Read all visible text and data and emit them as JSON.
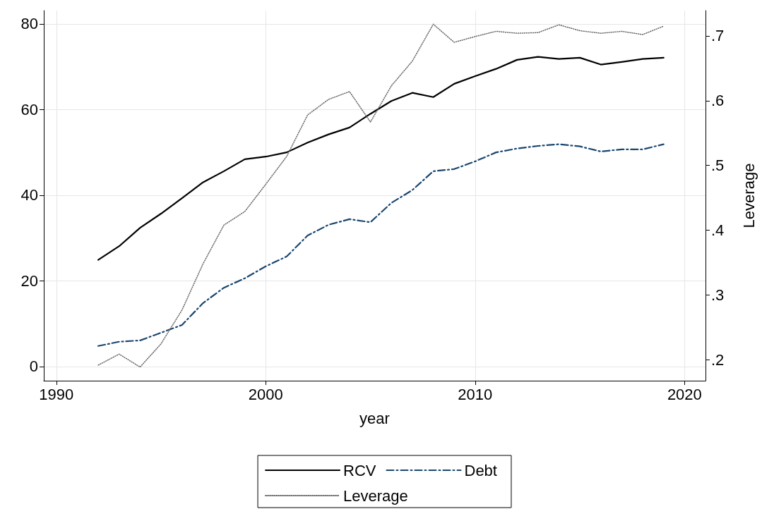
{
  "chart_data": {
    "type": "line",
    "xlabel": "year",
    "y2label": "Leverage",
    "x": [
      1992,
      1993,
      1994,
      1995,
      1996,
      1997,
      1998,
      1999,
      2000,
      2001,
      2002,
      2003,
      2004,
      2005,
      2006,
      2007,
      2008,
      2009,
      2010,
      2011,
      2012,
      2013,
      2014,
      2015,
      2016,
      2017,
      2018,
      2019
    ],
    "series": [
      {
        "name": "RCV",
        "color": "#000000",
        "line_style": "solid",
        "values": [
          24.9,
          28.1,
          32.4,
          35.7,
          39.3,
          43,
          45.6,
          48.4,
          49,
          50,
          52.3,
          54.2,
          55.8,
          59,
          62,
          63.9,
          62.9,
          66,
          67.8,
          69.5,
          71.6,
          72.3,
          71.8,
          72.1,
          70.5,
          71.1,
          71.8,
          72.1
        ]
      },
      {
        "name": "Debt",
        "color": "#1a476f",
        "line_style": "dashed",
        "values": [
          4.8,
          5.8,
          6.1,
          7.9,
          9.7,
          14.8,
          18.4,
          20.6,
          23.4,
          25.7,
          30.6,
          33.1,
          34.4,
          33.7,
          38.2,
          41.2,
          45.6,
          46.1,
          47.9,
          50,
          50.9,
          51.5,
          51.9,
          51.4,
          50.2,
          50.7,
          50.7,
          51.9
        ]
      },
      {
        "name": "Leverage",
        "color": "#666666",
        "line_style": "dotted",
        "axis": "y2",
        "values": [
          0.192,
          0.209,
          0.189,
          0.225,
          0.277,
          0.348,
          0.408,
          0.429,
          0.471,
          0.514,
          0.578,
          0.602,
          0.614,
          0.567,
          0.623,
          0.661,
          0.718,
          0.69,
          0.699,
          0.707,
          0.704,
          0.705,
          0.717,
          0.708,
          0.704,
          0.707,
          0.702,
          0.715
        ]
      }
    ],
    "xlim": [
      1989.4,
      2021
    ],
    "xticks": [
      1990,
      2000,
      2010,
      2020
    ],
    "ylim": [
      -3.3,
      83.1
    ],
    "yticks": [
      0,
      20,
      40,
      60,
      80
    ],
    "y2lim": [
      0.168,
      0.739
    ],
    "y2ticks": [
      {
        "value": 0.2,
        "label": ".2"
      },
      {
        "value": 0.3,
        "label": ".3"
      },
      {
        "value": 0.4,
        "label": ".4"
      },
      {
        "value": 0.5,
        "label": ".5"
      },
      {
        "value": 0.6,
        "label": ".6"
      },
      {
        "value": 0.7,
        "label": ".7"
      }
    ],
    "grid": true,
    "legend": "bottom",
    "marker": "none"
  }
}
